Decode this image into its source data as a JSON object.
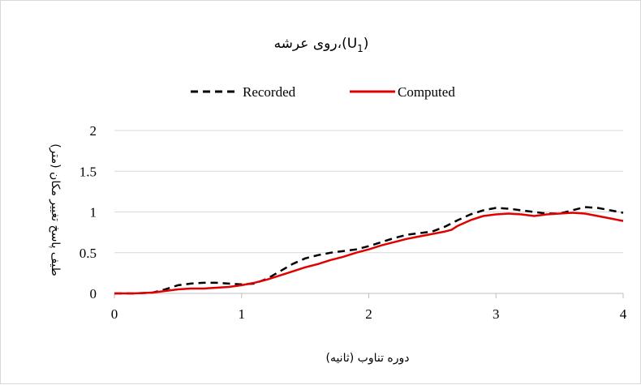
{
  "chart_data": {
    "type": "line",
    "title": "روی عرشه،(U1)",
    "title_parts": {
      "text": "روی عرشه،(U",
      "sub": "1",
      "close": ")"
    },
    "xlabel": "دوره تناوب (ثانیه)",
    "ylabel": "طیف پاسخ تغییر مکان (متر)",
    "xlim": [
      0,
      4
    ],
    "ylim": [
      0,
      2
    ],
    "x_ticks": [
      "0",
      "1",
      "2",
      "3",
      "4"
    ],
    "y_ticks": [
      "0",
      "0.5",
      "1",
      "1.5",
      "2"
    ],
    "grid": "horizontal",
    "legend_position": "top",
    "series": [
      {
        "name": "Recorded",
        "color": "#000000",
        "style": "dashed",
        "points": [
          [
            0,
            0
          ],
          [
            0.15,
            0.0
          ],
          [
            0.3,
            0.01
          ],
          [
            0.4,
            0.05
          ],
          [
            0.5,
            0.1
          ],
          [
            0.6,
            0.12
          ],
          [
            0.7,
            0.13
          ],
          [
            0.8,
            0.13
          ],
          [
            0.9,
            0.12
          ],
          [
            1.0,
            0.11
          ],
          [
            1.1,
            0.12
          ],
          [
            1.2,
            0.18
          ],
          [
            1.3,
            0.27
          ],
          [
            1.4,
            0.36
          ],
          [
            1.5,
            0.43
          ],
          [
            1.6,
            0.47
          ],
          [
            1.7,
            0.5
          ],
          [
            1.8,
            0.52
          ],
          [
            1.9,
            0.54
          ],
          [
            2.0,
            0.58
          ],
          [
            2.1,
            0.63
          ],
          [
            2.2,
            0.68
          ],
          [
            2.3,
            0.72
          ],
          [
            2.4,
            0.74
          ],
          [
            2.5,
            0.76
          ],
          [
            2.6,
            0.82
          ],
          [
            2.7,
            0.9
          ],
          [
            2.8,
            0.97
          ],
          [
            2.9,
            1.02
          ],
          [
            3.0,
            1.05
          ],
          [
            3.1,
            1.04
          ],
          [
            3.2,
            1.02
          ],
          [
            3.3,
            1.0
          ],
          [
            3.4,
            0.98
          ],
          [
            3.5,
            0.98
          ],
          [
            3.6,
            1.02
          ],
          [
            3.7,
            1.06
          ],
          [
            3.8,
            1.05
          ],
          [
            3.9,
            1.02
          ],
          [
            4.0,
            0.99
          ]
        ]
      },
      {
        "name": "Computed",
        "color": "#e00000",
        "style": "solid",
        "points": [
          [
            0,
            0
          ],
          [
            0.15,
            0.0
          ],
          [
            0.3,
            0.01
          ],
          [
            0.4,
            0.03
          ],
          [
            0.5,
            0.05
          ],
          [
            0.6,
            0.06
          ],
          [
            0.7,
            0.06
          ],
          [
            0.8,
            0.07
          ],
          [
            0.9,
            0.08
          ],
          [
            1.0,
            0.1
          ],
          [
            1.1,
            0.13
          ],
          [
            1.2,
            0.17
          ],
          [
            1.3,
            0.22
          ],
          [
            1.4,
            0.27
          ],
          [
            1.5,
            0.32
          ],
          [
            1.6,
            0.36
          ],
          [
            1.7,
            0.41
          ],
          [
            1.8,
            0.45
          ],
          [
            1.9,
            0.5
          ],
          [
            2.0,
            0.54
          ],
          [
            2.1,
            0.59
          ],
          [
            2.2,
            0.63
          ],
          [
            2.3,
            0.67
          ],
          [
            2.4,
            0.7
          ],
          [
            2.5,
            0.73
          ],
          [
            2.6,
            0.76
          ],
          [
            2.65,
            0.78
          ],
          [
            2.7,
            0.83
          ],
          [
            2.8,
            0.9
          ],
          [
            2.9,
            0.95
          ],
          [
            3.0,
            0.97
          ],
          [
            3.1,
            0.98
          ],
          [
            3.2,
            0.97
          ],
          [
            3.3,
            0.95
          ],
          [
            3.4,
            0.97
          ],
          [
            3.5,
            0.98
          ],
          [
            3.6,
            0.99
          ],
          [
            3.7,
            0.98
          ],
          [
            3.8,
            0.95
          ],
          [
            3.9,
            0.92
          ],
          [
            4.0,
            0.89
          ]
        ]
      }
    ]
  }
}
